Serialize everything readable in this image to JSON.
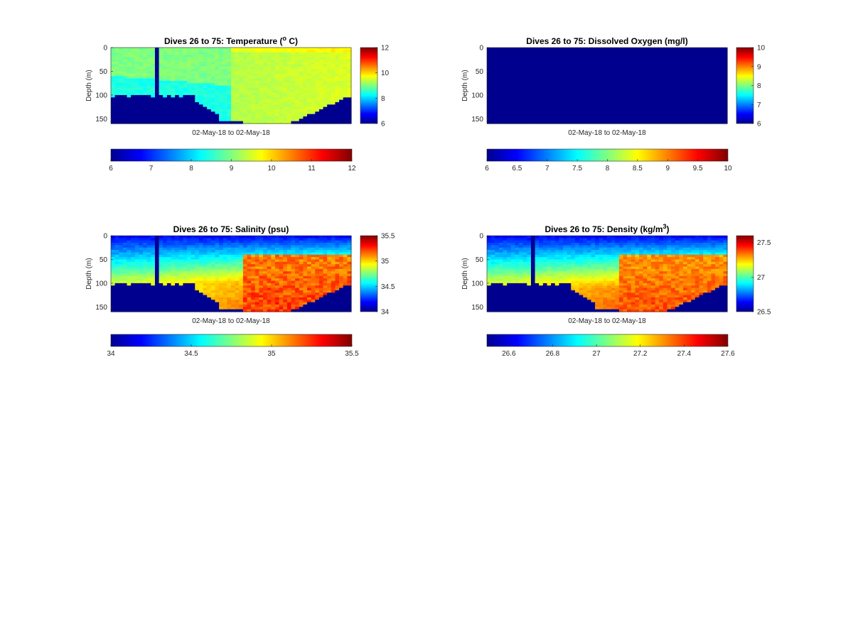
{
  "figure": {
    "background": "#ffffff",
    "colormap": "jet"
  },
  "chart_data": [
    {
      "type": "heatmap",
      "title_parts": [
        "Dives 26 to 75: Temperature (",
        "o",
        " C)"
      ],
      "title_super_index": 1,
      "ylabel": "Depth (m)",
      "xlabel": "02-May-18 to 02-May-18",
      "x": {
        "first_dive": 26,
        "last_dive": 75
      },
      "y": {
        "ylim": [
          0,
          160
        ],
        "reversed": true,
        "ticks": [
          "0",
          "50",
          "100",
          "150"
        ],
        "tick_values": [
          0,
          50,
          100,
          150
        ]
      },
      "clim": [
        6,
        12
      ],
      "side_colorbar": {
        "ticks": [
          "6",
          "8",
          "10",
          "12"
        ],
        "values": [
          6,
          8,
          10,
          12
        ]
      },
      "bottom_colorbar": {
        "ticks": [
          "6",
          "7",
          "8",
          "9",
          "10",
          "11",
          "12"
        ],
        "values": [
          6,
          7,
          8,
          9,
          10,
          11,
          12
        ]
      },
      "field": "temperature"
    },
    {
      "type": "heatmap",
      "title_parts": [
        "Dives 26 to 75: Dissolved Oxygen (mg/l)"
      ],
      "title_super_index": -1,
      "ylabel": "Depth (m)",
      "xlabel": "02-May-18 to 02-May-18",
      "x": {
        "first_dive": 26,
        "last_dive": 75
      },
      "y": {
        "ylim": [
          0,
          160
        ],
        "reversed": true,
        "ticks": [
          "0",
          "50",
          "100",
          "150"
        ],
        "tick_values": [
          0,
          50,
          100,
          150
        ]
      },
      "clim": [
        6,
        10
      ],
      "side_colorbar": {
        "ticks": [
          "6",
          "7",
          "8",
          "9",
          "10"
        ],
        "values": [
          6,
          7,
          8,
          9,
          10
        ]
      },
      "bottom_colorbar": {
        "ticks": [
          "6",
          "6.5",
          "7",
          "7.5",
          "8",
          "8.5",
          "9",
          "9.5",
          "10"
        ],
        "values": [
          6,
          6.5,
          7,
          7.5,
          8,
          8.5,
          9,
          9.5,
          10
        ]
      },
      "field": "oxygen"
    },
    {
      "type": "heatmap",
      "title_parts": [
        "Dives 26 to 75: Salinity (psu)"
      ],
      "title_super_index": -1,
      "ylabel": "Depth (m)",
      "xlabel": "02-May-18 to 02-May-18",
      "x": {
        "first_dive": 26,
        "last_dive": 75
      },
      "y": {
        "ylim": [
          0,
          160
        ],
        "reversed": true,
        "ticks": [
          "0",
          "50",
          "100",
          "150"
        ],
        "tick_values": [
          0,
          50,
          100,
          150
        ]
      },
      "clim": [
        34,
        35.5
      ],
      "side_colorbar": {
        "ticks": [
          "34",
          "34.5",
          "35",
          "35.5"
        ],
        "values": [
          34,
          34.5,
          35,
          35.5
        ]
      },
      "bottom_colorbar": {
        "ticks": [
          "34",
          "34.5",
          "35",
          "35.5"
        ],
        "values": [
          34,
          34.5,
          35,
          35.5
        ]
      },
      "field": "salinity"
    },
    {
      "type": "heatmap",
      "title_parts": [
        "Dives 26 to 75: Density (kg/m",
        "3",
        ")"
      ],
      "title_super_index": 1,
      "ylabel": "Depth (m)",
      "xlabel": "02-May-18 to 02-May-18",
      "x": {
        "first_dive": 26,
        "last_dive": 75
      },
      "y": {
        "ylim": [
          0,
          160
        ],
        "reversed": true,
        "ticks": [
          "0",
          "50",
          "100",
          "150"
        ],
        "tick_values": [
          0,
          50,
          100,
          150
        ]
      },
      "clim": [
        26.5,
        27.6
      ],
      "side_colorbar": {
        "ticks": [
          "26.5",
          "27",
          "27.5"
        ],
        "values": [
          26.5,
          27,
          27.5
        ]
      },
      "bottom_colorbar": {
        "ticks": [
          "26.6",
          "26.8",
          "27",
          "27.2",
          "27.4",
          "27.6"
        ],
        "values": [
          26.6,
          26.8,
          27,
          27.2,
          27.4,
          27.6
        ]
      },
      "field": "density"
    }
  ]
}
